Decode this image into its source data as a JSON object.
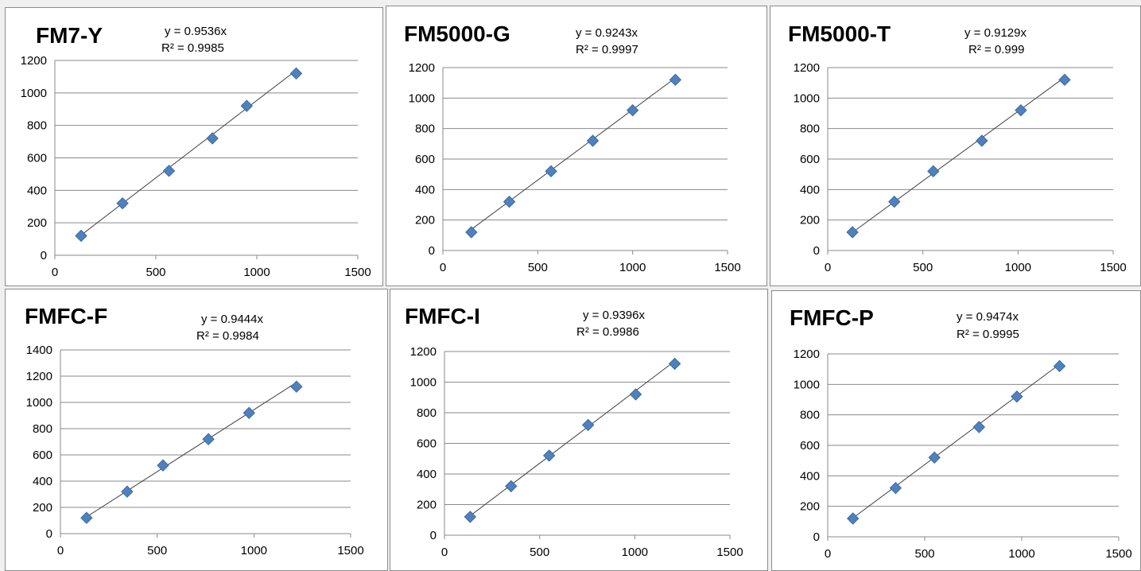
{
  "colors": {
    "marker": "#4f81bd",
    "marker_edge": "#3a6aa3"
  },
  "chart_data": [
    {
      "type": "scatter",
      "title": "FM7-Y",
      "equation": "y = 0.9536x",
      "r2": "R² = 0.9985",
      "trendline_slope": 0.9536,
      "xlim": [
        0,
        1500
      ],
      "ylim": [
        0,
        1200
      ],
      "xticks": [
        "0",
        "500",
        "1000",
        "1500"
      ],
      "yticks": [
        "0",
        "200",
        "400",
        "600",
        "800",
        "1000",
        "1200"
      ],
      "x": [
        130,
        335,
        565,
        780,
        950,
        1195
      ],
      "y": [
        120,
        320,
        520,
        720,
        920,
        1120
      ]
    },
    {
      "type": "scatter",
      "title": "FM5000-G",
      "equation": "y = 0.9243x",
      "r2": "R² = 0.9997",
      "trendline_slope": 0.9243,
      "xlim": [
        0,
        1500
      ],
      "ylim": [
        0,
        1200
      ],
      "xticks": [
        "0",
        "500",
        "1000",
        "1500"
      ],
      "yticks": [
        "0",
        "200",
        "400",
        "600",
        "800",
        "1000",
        "1200"
      ],
      "x": [
        150,
        350,
        570,
        790,
        1000,
        1225
      ],
      "y": [
        120,
        320,
        520,
        720,
        920,
        1120
      ]
    },
    {
      "type": "scatter",
      "title": "FM5000-T",
      "equation": "y = 0.9129x",
      "r2": "R² = 0.999",
      "trendline_slope": 0.9129,
      "xlim": [
        0,
        1500
      ],
      "ylim": [
        0,
        1200
      ],
      "xticks": [
        "0",
        "500",
        "1000",
        "1500"
      ],
      "yticks": [
        "0",
        "200",
        "400",
        "600",
        "800",
        "1000",
        "1200"
      ],
      "x": [
        130,
        350,
        555,
        810,
        1015,
        1245
      ],
      "y": [
        120,
        320,
        520,
        720,
        920,
        1120
      ]
    },
    {
      "type": "scatter",
      "title": "FMFC-F",
      "equation": "y = 0.9444x",
      "r2": "R² = 0.9984",
      "trendline_slope": 0.9444,
      "xlim": [
        0,
        1500
      ],
      "ylim": [
        0,
        1400
      ],
      "xticks": [
        "0",
        "500",
        "1000",
        "1500"
      ],
      "yticks": [
        "0",
        "200",
        "400",
        "600",
        "800",
        "1000",
        "1200",
        "1400"
      ],
      "x": [
        135,
        345,
        530,
        765,
        975,
        1220
      ],
      "y": [
        120,
        320,
        520,
        720,
        920,
        1120
      ]
    },
    {
      "type": "scatter",
      "title": "FMFC-I",
      "equation": "y = 0.9396x",
      "r2": "R² = 0.9986",
      "trendline_slope": 0.9396,
      "xlim": [
        0,
        1500
      ],
      "ylim": [
        0,
        1200
      ],
      "xticks": [
        "0",
        "500",
        "1000",
        "1500"
      ],
      "yticks": [
        "0",
        "200",
        "400",
        "600",
        "800",
        "1000",
        "1200"
      ],
      "x": [
        135,
        350,
        550,
        755,
        1005,
        1210
      ],
      "y": [
        120,
        320,
        520,
        720,
        920,
        1120
      ]
    },
    {
      "type": "scatter",
      "title": "FMFC-P",
      "equation": "y = 0.9474x",
      "r2": "R² = 0.9995",
      "trendline_slope": 0.9474,
      "xlim": [
        0,
        1500
      ],
      "ylim": [
        0,
        1200
      ],
      "xticks": [
        "0",
        "500",
        "1000",
        "1500"
      ],
      "yticks": [
        "0",
        "200",
        "400",
        "600",
        "800",
        "1000",
        "1200"
      ],
      "x": [
        130,
        350,
        550,
        780,
        975,
        1195
      ],
      "y": [
        120,
        320,
        520,
        720,
        920,
        1120
      ]
    }
  ]
}
